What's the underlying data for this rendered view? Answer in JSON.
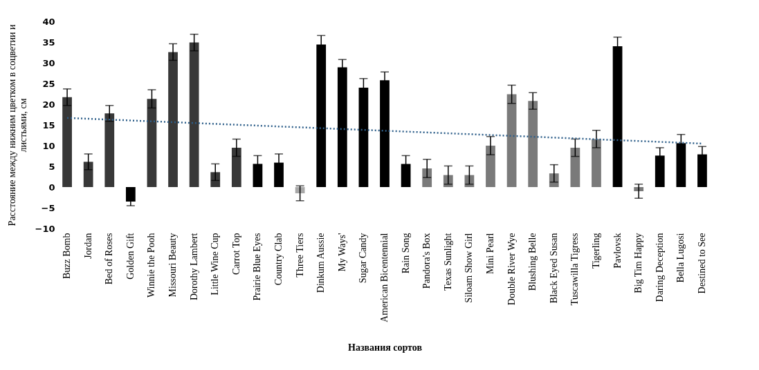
{
  "chart_data": {
    "type": "bar",
    "xlabel": "Названия сортов",
    "ylabel": "Расстояние между нижним цветком в соцветии и листьями, см",
    "categories": [
      "Buzz Bomb",
      "Jordan",
      "Bed of Roses",
      "Golden Gift",
      "Winnie the Pooh",
      "Missouri Beauty",
      "Dorothy Lambert",
      "Little Wine Cup",
      "Carrot Top",
      "Prairie Blue Eyes",
      "Country Clab",
      "Three Tiers",
      "Dinkum Aussie",
      "My Ways'",
      "Sugar Candy",
      "American Bicentennial",
      "Rain Song",
      "Pandora's Box",
      "Texas Sunlight",
      "Siloam Show Girl",
      "Mini Pearl",
      "Double River Wye",
      "Blushing Belle",
      "Black Eyed Susan",
      "Tuscawilla Tigress",
      "Tigerling",
      "Pavlovsk",
      "Big Tim Happy",
      "Daring Deception",
      "Bella Lugosi",
      "Destined to See"
    ],
    "series": [
      {
        "values": [
          21.7,
          6.1,
          17.8,
          -3.5,
          21.3,
          32.6,
          34.9,
          3.6,
          9.5,
          5.6,
          5.9,
          -1.5,
          34.4,
          28.9,
          24.0,
          25.8,
          5.6,
          4.5,
          2.9,
          2.9,
          10.0,
          22.4,
          20.8,
          3.3,
          9.5,
          11.6,
          34.0,
          -1.0,
          7.6,
          10.6,
          7.9
        ],
        "errors": [
          2.0,
          1.9,
          1.9,
          1.0,
          2.2,
          2.0,
          2.0,
          2.0,
          2.1,
          2.0,
          2.1,
          1.8,
          2.2,
          1.9,
          2.2,
          2.0,
          2.0,
          2.2,
          2.2,
          2.2,
          2.2,
          2.2,
          2.0,
          2.1,
          2.1,
          2.1,
          2.2,
          1.7,
          1.9,
          2.1,
          1.9
        ],
        "colors": [
          "#383838",
          "#383838",
          "#383838",
          "#000000",
          "#383838",
          "#383838",
          "#383838",
          "#383838",
          "#383838",
          "#000000",
          "#000000",
          "#a8a8a8",
          "#000000",
          "#000000",
          "#000000",
          "#000000",
          "#000000",
          "#7a7a7a",
          "#7a7a7a",
          "#7a7a7a",
          "#7a7a7a",
          "#7a7a7a",
          "#7a7a7a",
          "#7a7a7a",
          "#7a7a7a",
          "#7a7a7a",
          "#000000",
          "#7a7a7a",
          "#000000",
          "#000000",
          "#000000"
        ]
      },
      {
        "type": "line",
        "x": [
          "Buzz Bomb",
          "Destined to See"
        ],
        "values": [
          16.7,
          10.5
        ],
        "color": "#2e5f8a",
        "line_style": "dotted"
      }
    ],
    "ylim": [
      -10,
      40
    ],
    "yticks": [
      -10,
      -5,
      0,
      5,
      10,
      15,
      20,
      25,
      30,
      35,
      40
    ],
    "grid": false
  }
}
